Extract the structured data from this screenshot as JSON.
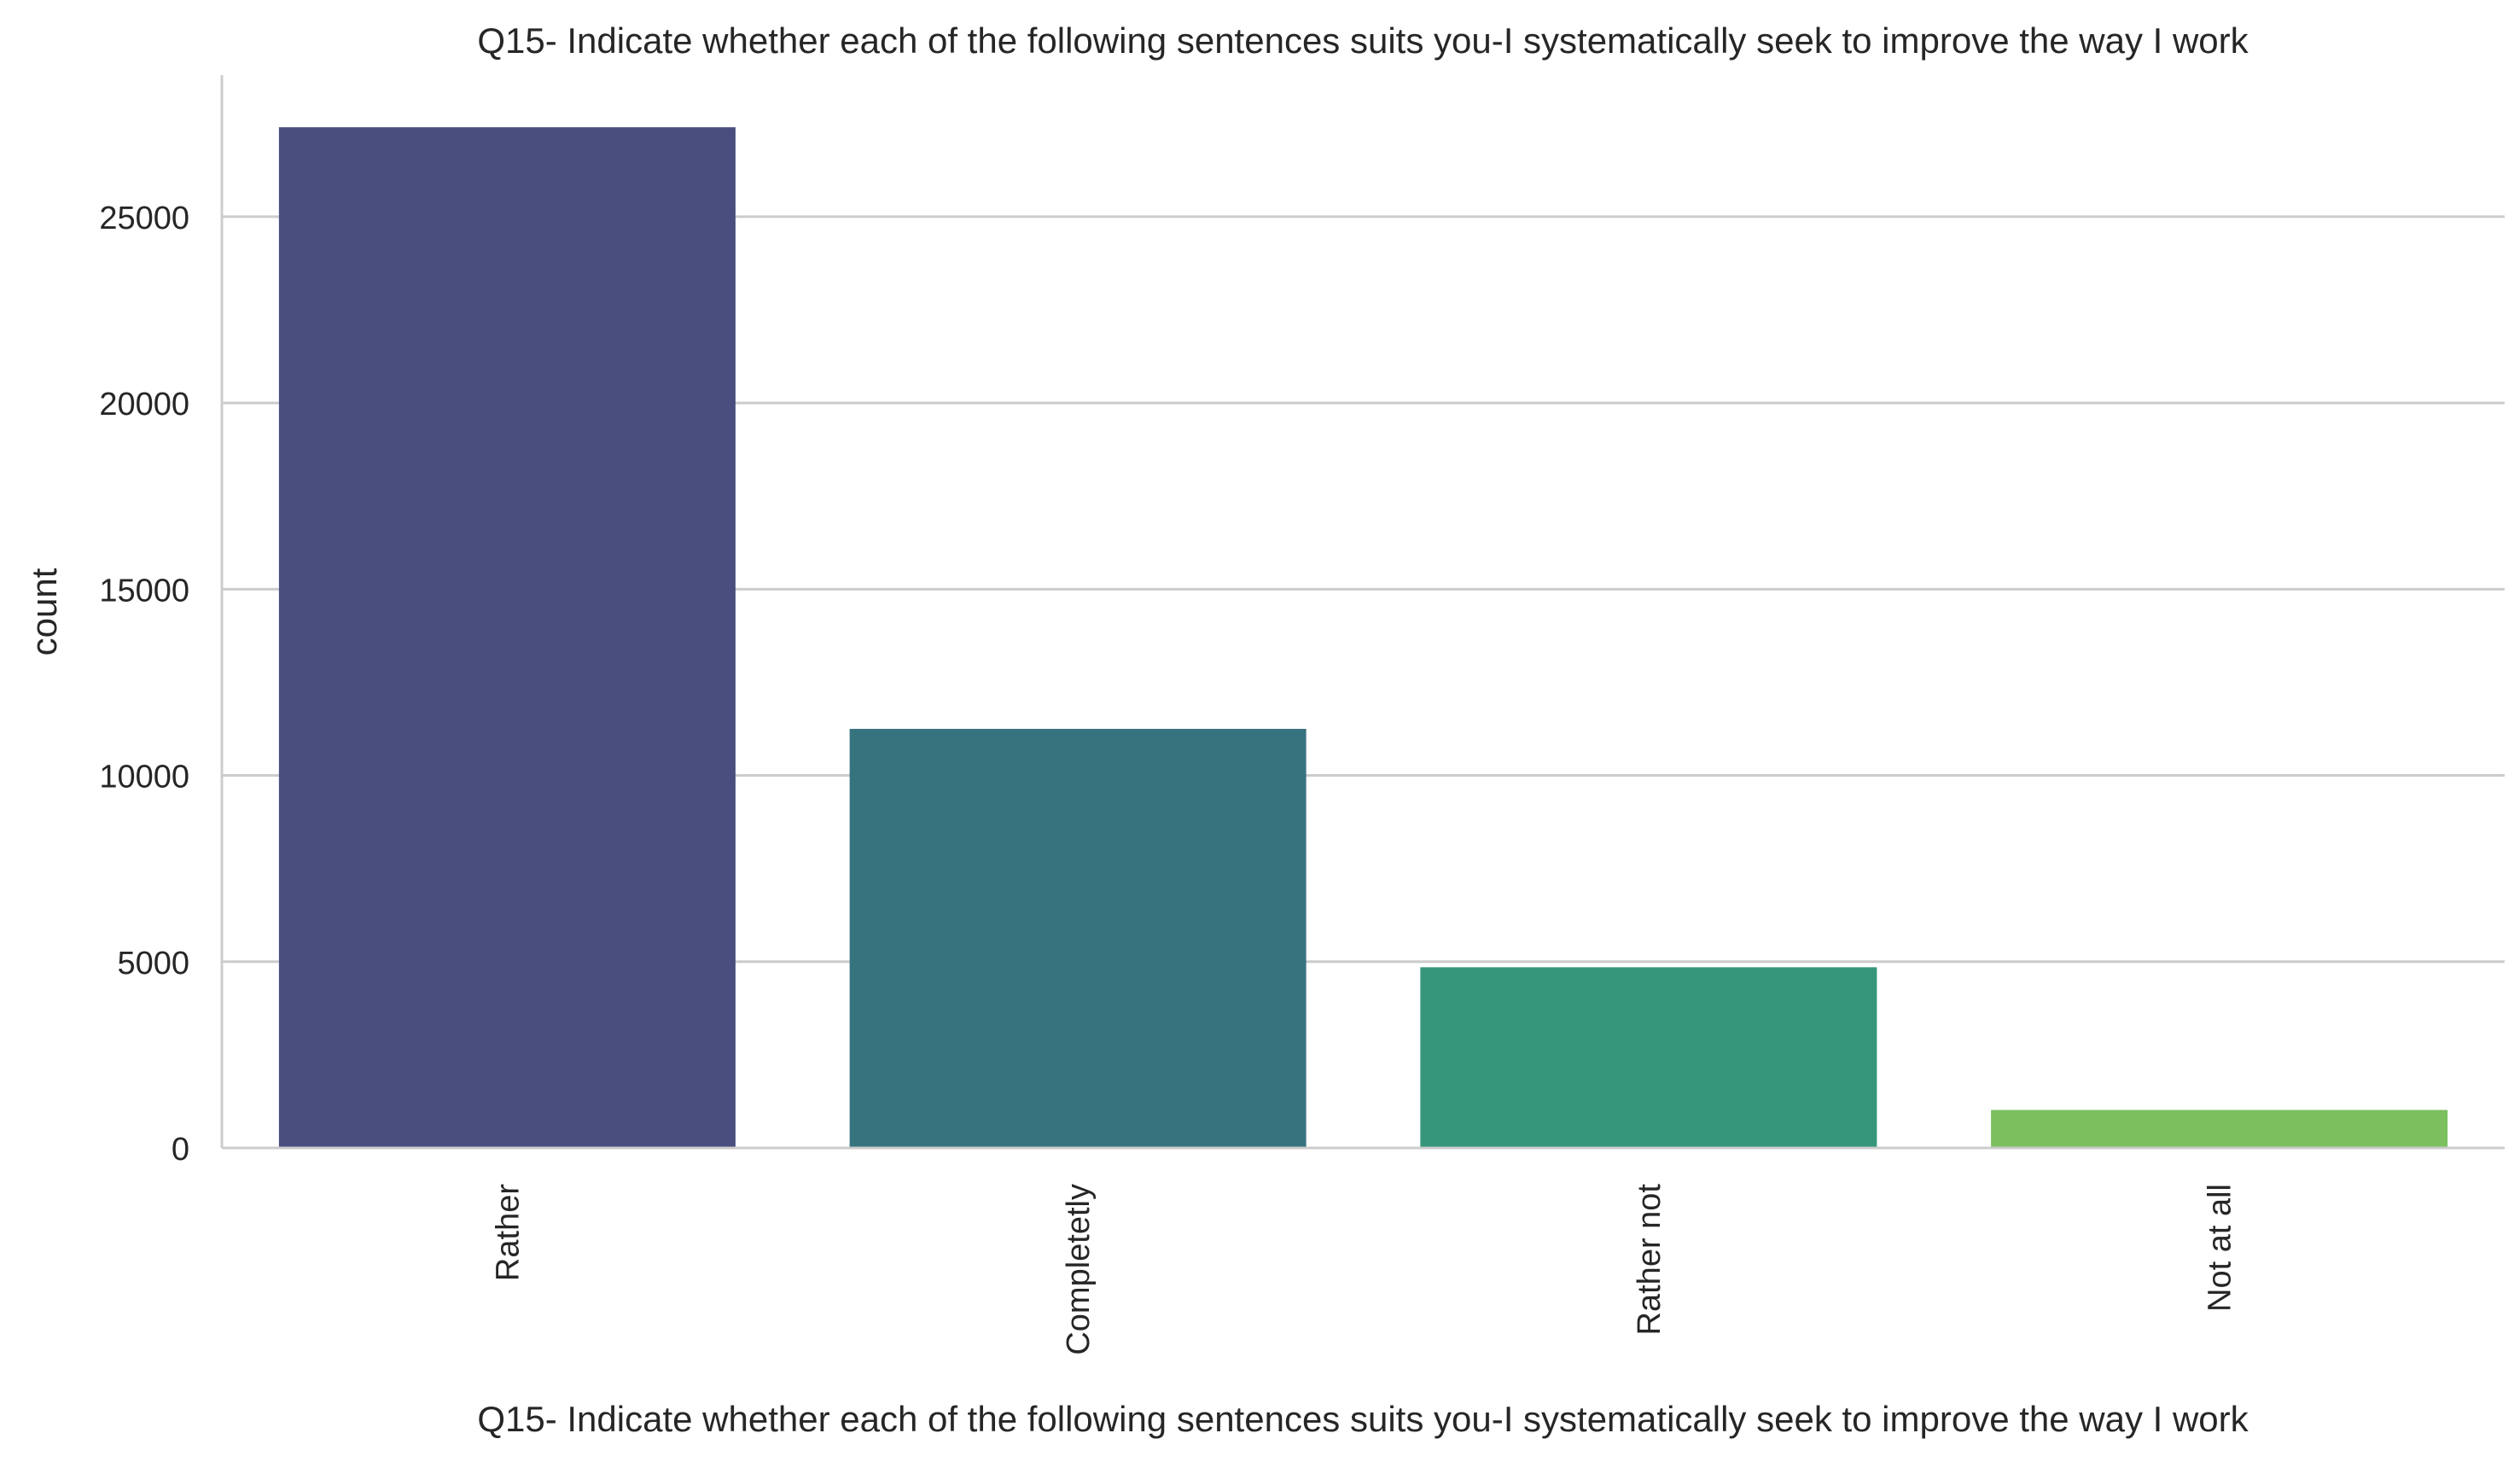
{
  "chart_data": {
    "type": "bar",
    "title": "Q15- Indicate whether each of the following sentences suits you-I systematically seek to improve the way I work",
    "xlabel": "Q15- Indicate whether each of the following sentences suits you-I systematically seek to improve the way I work",
    "ylabel": "count",
    "categories": [
      "Rather",
      "Completetly",
      "Rather not",
      "Not at all"
    ],
    "values": [
      27400,
      11250,
      4850,
      1020
    ],
    "colors": [
      "#4a4e7e",
      "#37727f",
      "#35967b",
      "#7bbf5f"
    ],
    "ylim": [
      0,
      28800
    ],
    "yticks": [
      0,
      5000,
      10000,
      15000,
      20000,
      25000
    ],
    "ytick_labels": [
      "0",
      "5000",
      "10000",
      "15000",
      "20000",
      "25000"
    ],
    "grid": "horizontal",
    "legend": "none"
  }
}
